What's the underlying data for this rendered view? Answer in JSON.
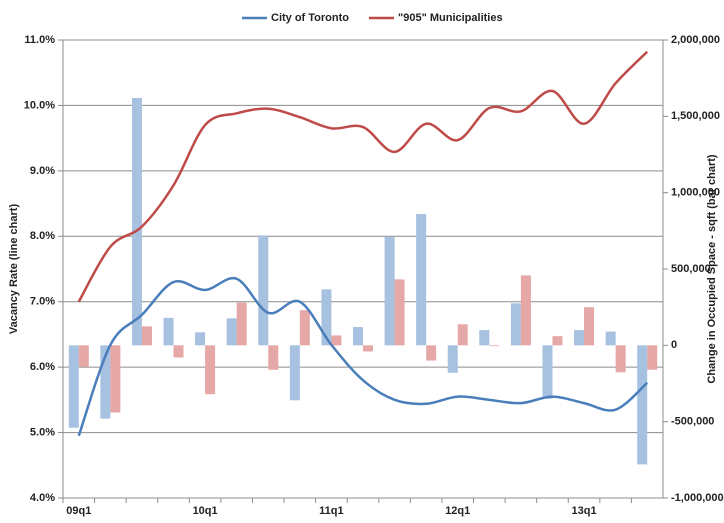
{
  "chart_data": {
    "type": "combo",
    "y_label": "Vacancy Rate (line chart)",
    "y2_label": "Change in Occupied Space - sqft (bar chart)",
    "categories": [
      "09q1",
      null,
      null,
      null,
      "10q1",
      null,
      null,
      null,
      "11q1",
      null,
      null,
      null,
      "12q1",
      null,
      null,
      null,
      "13q1",
      null,
      null
    ],
    "ylim": [
      4,
      11
    ],
    "yticks": [
      {
        "value": 4,
        "label": "4.0%"
      },
      {
        "value": 5,
        "label": "5.0%"
      },
      {
        "value": 6,
        "label": "6.0%"
      },
      {
        "value": 7,
        "label": "7.0%"
      },
      {
        "value": 8,
        "label": "8.0%"
      },
      {
        "value": 9,
        "label": "9.0%"
      },
      {
        "value": 10,
        "label": "10.0%"
      },
      {
        "value": 11,
        "label": "11.0%"
      }
    ],
    "y2lim": [
      -1000000,
      2000000
    ],
    "y2ticks": [
      {
        "value": -1000000,
        "label": "-1,000,000"
      },
      {
        "value": -500000,
        "label": "-500,000"
      },
      0,
      {
        "value": 500000,
        "label": "500,000"
      },
      {
        "value": 1000000,
        "label": "1,000,000"
      },
      {
        "value": 1500000,
        "label": "1,500,000"
      },
      {
        "value": 2000000,
        "label": "2,000,000"
      }
    ],
    "grid": true,
    "legend": "top",
    "series": [
      {
        "name": "City of Toronto",
        "color": "#4a7ebb",
        "values": [
          4.95,
          6.34,
          6.8,
          7.3,
          7.18,
          7.35,
          6.83,
          7.0,
          6.34,
          5.8,
          5.5,
          5.44,
          5.55,
          5.5,
          5.45,
          5.55,
          5.45,
          5.35,
          5.76
        ]
      },
      {
        "name": "\"905\" Municipalities",
        "color": "#be4b48",
        "values": [
          7.0,
          7.84,
          8.15,
          8.78,
          9.7,
          9.88,
          9.95,
          9.82,
          9.65,
          9.67,
          9.29,
          9.72,
          9.47,
          9.96,
          9.91,
          10.22,
          9.72,
          10.34,
          10.82
        ]
      }
    ],
    "bar_series": [
      {
        "color": "#a7c1e1",
        "axis": "y2",
        "values": [
          -540000,
          -480000,
          1620000,
          180000,
          85000,
          177000,
          720000,
          -360000,
          367000,
          120000,
          710000,
          860000,
          -180000,
          100000,
          275000,
          -350000,
          100000,
          90000,
          -780000
        ]
      },
      {
        "color": "#e5a8a7",
        "axis": "y2",
        "values": [
          -140000,
          -440000,
          124000,
          -80000,
          -320000,
          280000,
          -160000,
          230000,
          65000,
          -40000,
          432000,
          -100000,
          138000,
          -5000,
          458000,
          60000,
          250000,
          -177000,
          -160000
        ]
      }
    ]
  }
}
